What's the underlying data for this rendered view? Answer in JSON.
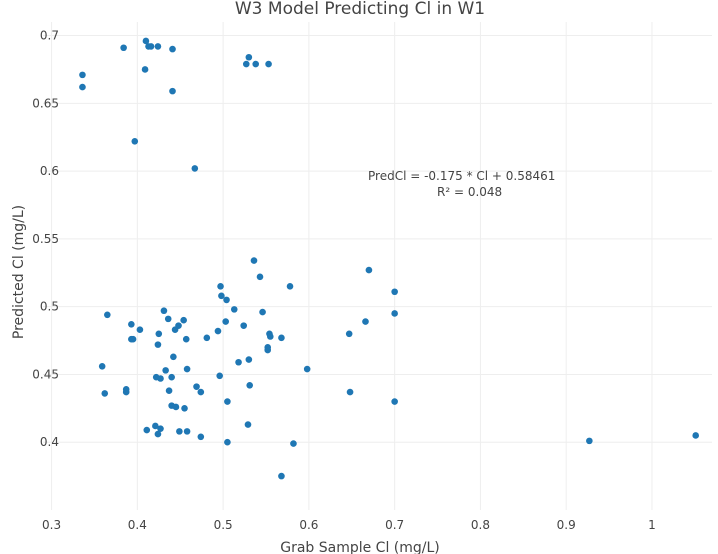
{
  "chart_data": {
    "type": "scatter",
    "title": "W3 Model Predicting Cl in W1",
    "xlabel": "Grab Sample Cl (mg/L)",
    "ylabel": "Predicted Cl (mg/L)",
    "xlim": [
      0.29,
      1.07
    ],
    "ylim": [
      0.35,
      0.71
    ],
    "grid": true,
    "color": "#1f77b4",
    "xticks": [
      {
        "value": 0.3,
        "label": "0.3"
      },
      {
        "value": 0.4,
        "label": "0.4"
      },
      {
        "value": 0.5,
        "label": "0.5"
      },
      {
        "value": 0.6,
        "label": "0.6"
      },
      {
        "value": 0.7,
        "label": "0.7"
      },
      {
        "value": 0.8,
        "label": "0.8"
      },
      {
        "value": 0.9,
        "label": "0.9"
      },
      {
        "value": 1.0,
        "label": "1"
      }
    ],
    "yticks": [
      {
        "value": 0.4,
        "label": "0.4"
      },
      {
        "value": 0.45,
        "label": "0.45"
      },
      {
        "value": 0.5,
        "label": "0.5"
      },
      {
        "value": 0.55,
        "label": "0.55"
      },
      {
        "value": 0.6,
        "label": "0.6"
      },
      {
        "value": 0.65,
        "label": "0.65"
      },
      {
        "value": 0.7,
        "label": "0.7"
      }
    ],
    "annotation": {
      "line1": "PredCl  =  -0.175 * Cl + 0.58461",
      "line2": "R² =  0.048"
    },
    "points": [
      {
        "x": 0.336,
        "y": 0.671
      },
      {
        "x": 0.336,
        "y": 0.662
      },
      {
        "x": 0.384,
        "y": 0.691
      },
      {
        "x": 0.397,
        "y": 0.622
      },
      {
        "x": 0.409,
        "y": 0.675
      },
      {
        "x": 0.41,
        "y": 0.696
      },
      {
        "x": 0.413,
        "y": 0.692
      },
      {
        "x": 0.416,
        "y": 0.692
      },
      {
        "x": 0.424,
        "y": 0.692
      },
      {
        "x": 0.441,
        "y": 0.69
      },
      {
        "x": 0.441,
        "y": 0.659
      },
      {
        "x": 0.467,
        "y": 0.602
      },
      {
        "x": 0.527,
        "y": 0.679
      },
      {
        "x": 0.53,
        "y": 0.684
      },
      {
        "x": 0.538,
        "y": 0.679
      },
      {
        "x": 0.553,
        "y": 0.679
      },
      {
        "x": 0.536,
        "y": 0.534
      },
      {
        "x": 0.543,
        "y": 0.522
      },
      {
        "x": 0.578,
        "y": 0.515
      },
      {
        "x": 0.67,
        "y": 0.527
      },
      {
        "x": 0.7,
        "y": 0.511
      },
      {
        "x": 0.7,
        "y": 0.495
      },
      {
        "x": 0.666,
        "y": 0.489
      },
      {
        "x": 0.647,
        "y": 0.48
      },
      {
        "x": 0.365,
        "y": 0.494
      },
      {
        "x": 0.393,
        "y": 0.487
      },
      {
        "x": 0.393,
        "y": 0.476
      },
      {
        "x": 0.395,
        "y": 0.476
      },
      {
        "x": 0.403,
        "y": 0.483
      },
      {
        "x": 0.431,
        "y": 0.497
      },
      {
        "x": 0.436,
        "y": 0.491
      },
      {
        "x": 0.425,
        "y": 0.48
      },
      {
        "x": 0.424,
        "y": 0.472
      },
      {
        "x": 0.444,
        "y": 0.483
      },
      {
        "x": 0.448,
        "y": 0.486
      },
      {
        "x": 0.454,
        "y": 0.49
      },
      {
        "x": 0.457,
        "y": 0.476
      },
      {
        "x": 0.481,
        "y": 0.477
      },
      {
        "x": 0.497,
        "y": 0.515
      },
      {
        "x": 0.498,
        "y": 0.508
      },
      {
        "x": 0.504,
        "y": 0.505
      },
      {
        "x": 0.503,
        "y": 0.489
      },
      {
        "x": 0.494,
        "y": 0.482
      },
      {
        "x": 0.513,
        "y": 0.498
      },
      {
        "x": 0.524,
        "y": 0.486
      },
      {
        "x": 0.546,
        "y": 0.496
      },
      {
        "x": 0.554,
        "y": 0.48
      },
      {
        "x": 0.555,
        "y": 0.478
      },
      {
        "x": 0.568,
        "y": 0.477
      },
      {
        "x": 0.552,
        "y": 0.47
      },
      {
        "x": 0.552,
        "y": 0.468
      },
      {
        "x": 0.359,
        "y": 0.456
      },
      {
        "x": 0.362,
        "y": 0.436
      },
      {
        "x": 0.387,
        "y": 0.439
      },
      {
        "x": 0.387,
        "y": 0.437
      },
      {
        "x": 0.442,
        "y": 0.463
      },
      {
        "x": 0.458,
        "y": 0.454
      },
      {
        "x": 0.433,
        "y": 0.453
      },
      {
        "x": 0.422,
        "y": 0.448
      },
      {
        "x": 0.427,
        "y": 0.447
      },
      {
        "x": 0.44,
        "y": 0.448
      },
      {
        "x": 0.437,
        "y": 0.438
      },
      {
        "x": 0.469,
        "y": 0.441
      },
      {
        "x": 0.474,
        "y": 0.437
      },
      {
        "x": 0.496,
        "y": 0.449
      },
      {
        "x": 0.518,
        "y": 0.459
      },
      {
        "x": 0.53,
        "y": 0.461
      },
      {
        "x": 0.531,
        "y": 0.442
      },
      {
        "x": 0.598,
        "y": 0.454
      },
      {
        "x": 0.648,
        "y": 0.437
      },
      {
        "x": 0.7,
        "y": 0.43
      },
      {
        "x": 0.505,
        "y": 0.43
      },
      {
        "x": 0.44,
        "y": 0.427
      },
      {
        "x": 0.445,
        "y": 0.426
      },
      {
        "x": 0.455,
        "y": 0.425
      },
      {
        "x": 0.411,
        "y": 0.409
      },
      {
        "x": 0.421,
        "y": 0.412
      },
      {
        "x": 0.427,
        "y": 0.41
      },
      {
        "x": 0.424,
        "y": 0.406
      },
      {
        "x": 0.449,
        "y": 0.408
      },
      {
        "x": 0.458,
        "y": 0.408
      },
      {
        "x": 0.474,
        "y": 0.404
      },
      {
        "x": 0.505,
        "y": 0.4
      },
      {
        "x": 0.529,
        "y": 0.413
      },
      {
        "x": 0.582,
        "y": 0.399
      },
      {
        "x": 0.568,
        "y": 0.375
      },
      {
        "x": 0.927,
        "y": 0.401
      },
      {
        "x": 1.051,
        "y": 0.405
      }
    ]
  }
}
